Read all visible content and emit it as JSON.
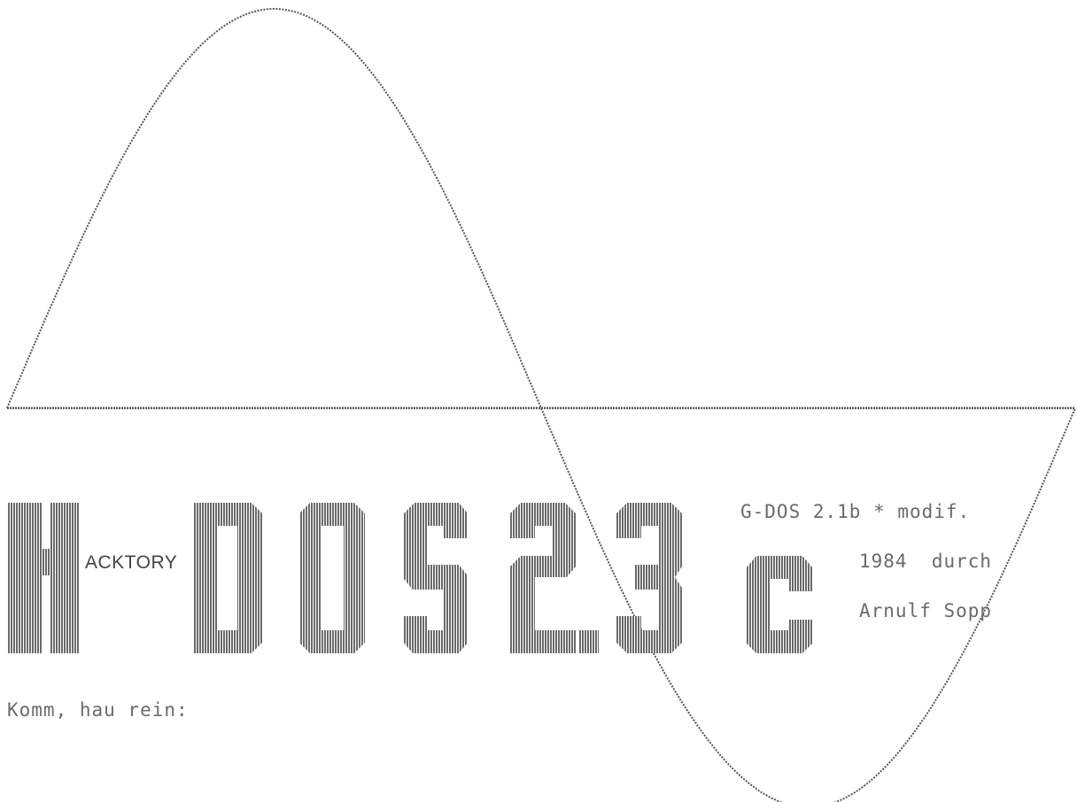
{
  "title": {
    "prefix_letter": "H",
    "prefix_word": "ACKTORY",
    "name": "DOS",
    "version": "2.3",
    "suffix": "C"
  },
  "credits": {
    "line1": "G-DOS 2.1b * modif.",
    "line2": "1984  durch",
    "line3": "Arnulf Sopp"
  },
  "prompt": "Komm, hau rein:",
  "colors": {
    "background": "#ffffff",
    "block": "#707070",
    "line": "#555555"
  }
}
